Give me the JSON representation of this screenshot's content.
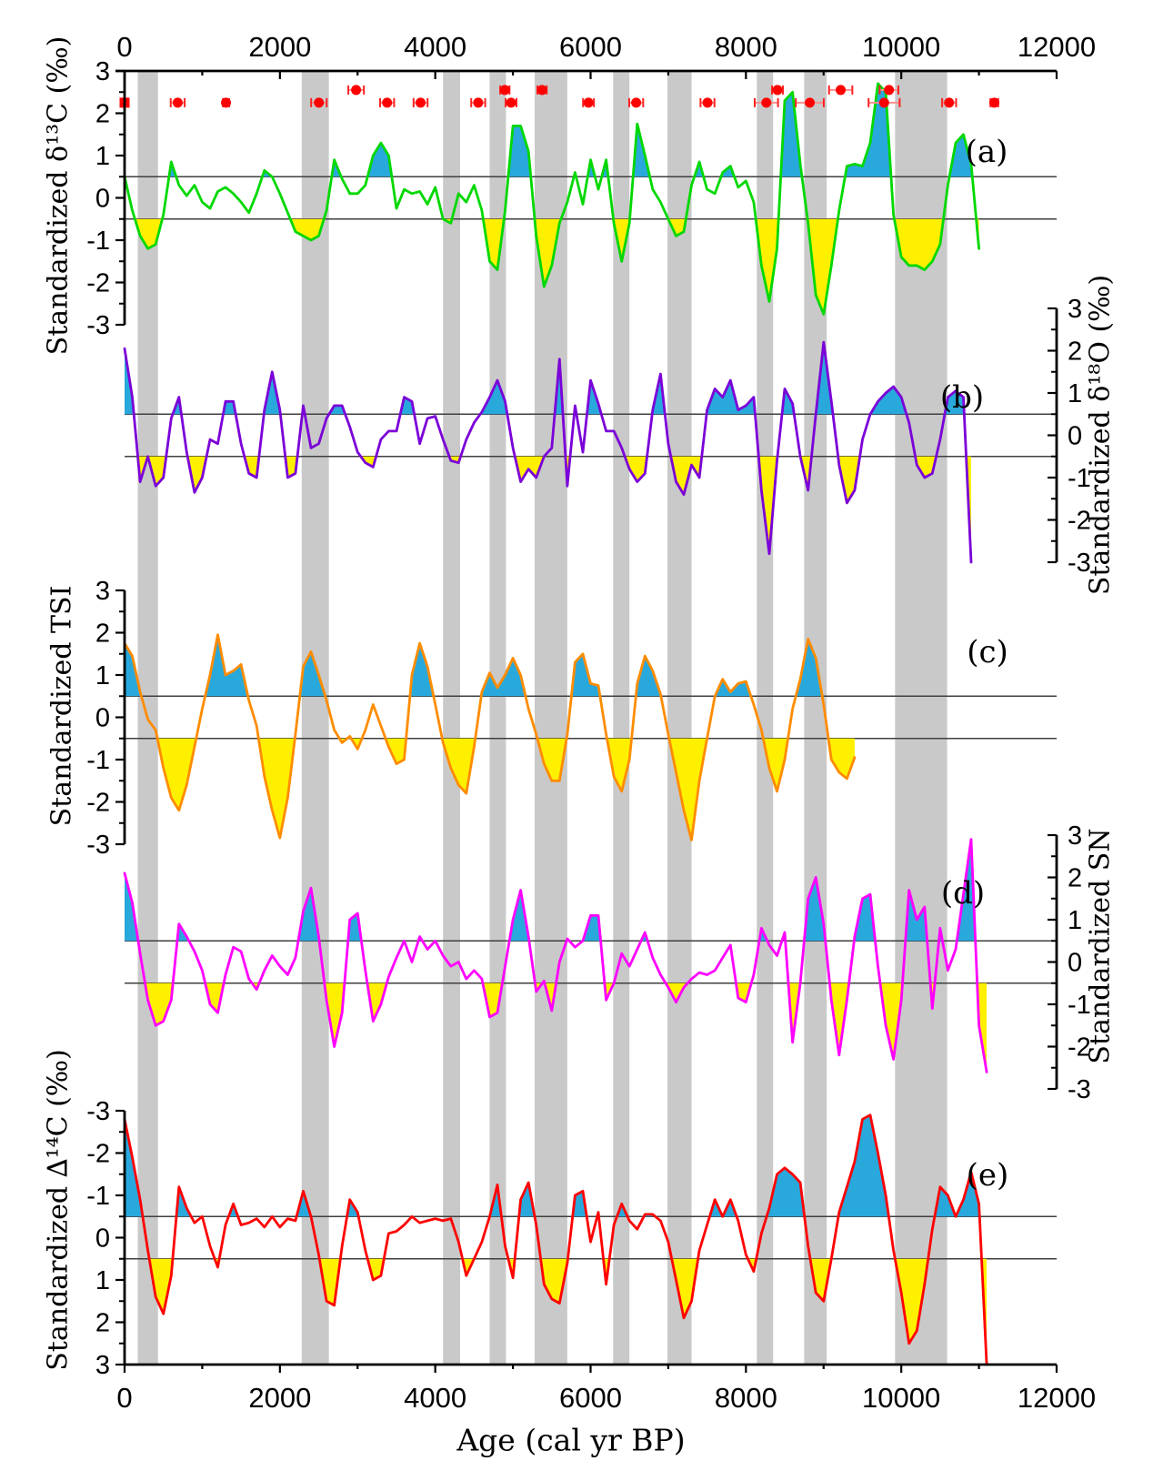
{
  "figure": {
    "background": "#ffffff"
  },
  "chart_data": {
    "type": "line",
    "x_axis": {
      "label": "Age (cal yr BP)",
      "min": 0,
      "max": 12000,
      "major_tick_step": 2000,
      "minor_tick_step": 1000,
      "tick_labels": [
        "0",
        "2000",
        "4000",
        "6000",
        "8000",
        "10000",
        "12000"
      ],
      "tick_values": [
        0,
        2000,
        4000,
        6000,
        8000,
        10000,
        12000
      ]
    },
    "highlight_bands": {
      "color": "#c9c9c9",
      "intervals_cal_yr_BP": [
        [
          170,
          430
        ],
        [
          2280,
          2630
        ],
        [
          4100,
          4320
        ],
        [
          4700,
          4910
        ],
        [
          5280,
          5700
        ],
        [
          6290,
          6500
        ],
        [
          6990,
          7300
        ],
        [
          8140,
          8350
        ],
        [
          8750,
          9040
        ],
        [
          9920,
          10590
        ]
      ]
    },
    "reference_lines": {
      "values": [
        0.5,
        -0.5
      ],
      "color": "#3f3f3f"
    },
    "fills": {
      "above_color": "#29a8dc",
      "below_color": "#fff000"
    },
    "radiocarbon_markers": {
      "marker_color": "#ff0000",
      "errorbar_color": "#ff8f8f",
      "cap_color": "#ff2020",
      "points": [
        {
          "age": 0,
          "y": 2.25,
          "err": 0,
          "shape": "square"
        },
        {
          "age": 684,
          "y": 2.25,
          "err": 90,
          "shape": "circle"
        },
        {
          "age": 1306,
          "y": 2.25,
          "err": 40,
          "shape": "circle"
        },
        {
          "age": 2502,
          "y": 2.25,
          "err": 100,
          "shape": "circle"
        },
        {
          "age": 2981,
          "y": 2.55,
          "err": 100,
          "shape": "circle"
        },
        {
          "age": 3380,
          "y": 2.25,
          "err": 90,
          "shape": "circle"
        },
        {
          "age": 3811,
          "y": 2.25,
          "err": 90,
          "shape": "circle"
        },
        {
          "age": 4553,
          "y": 2.25,
          "err": 90,
          "shape": "circle"
        },
        {
          "age": 4896,
          "y": 2.55,
          "err": 60,
          "shape": "circle"
        },
        {
          "age": 4976,
          "y": 2.25,
          "err": 70,
          "shape": "circle"
        },
        {
          "age": 5375,
          "y": 2.55,
          "err": 60,
          "shape": "circle"
        },
        {
          "age": 5973,
          "y": 2.25,
          "err": 70,
          "shape": "circle"
        },
        {
          "age": 6587,
          "y": 2.25,
          "err": 90,
          "shape": "circle"
        },
        {
          "age": 7505,
          "y": 2.25,
          "err": 90,
          "shape": "circle"
        },
        {
          "age": 8263,
          "y": 2.25,
          "err": 150,
          "shape": "circle"
        },
        {
          "age": 8406,
          "y": 2.55,
          "err": 70,
          "shape": "circle"
        },
        {
          "age": 8822,
          "y": 2.25,
          "err": 180,
          "shape": "circle"
        },
        {
          "age": 9220,
          "y": 2.55,
          "err": 150,
          "shape": "circle"
        },
        {
          "age": 9779,
          "y": 2.25,
          "err": 200,
          "shape": "circle"
        },
        {
          "age": 9842,
          "y": 2.55,
          "err": 120,
          "shape": "circle"
        },
        {
          "age": 10616,
          "y": 2.25,
          "err": 90,
          "shape": "circle"
        },
        {
          "age": 11198,
          "y": 2.25,
          "err": 50,
          "shape": "circle"
        }
      ]
    },
    "panels": [
      {
        "id": "a",
        "panel_label": "(a)",
        "y_axis_label": "Standardized δ¹³C (‰)",
        "axis_side": "left",
        "y_min": -3,
        "y_max": 3,
        "inverted": false,
        "y_ticks": [
          3,
          2,
          1,
          0,
          -1,
          -2,
          -3
        ],
        "line_color": "#00d800",
        "series_name": "delta13C",
        "x_start": 0,
        "x_step": 100,
        "values": [
          0.5,
          -0.3,
          -0.9,
          -1.2,
          -1.1,
          -0.4,
          0.85,
          0.3,
          0.05,
          0.3,
          -0.1,
          -0.25,
          0.15,
          0.25,
          0.1,
          -0.1,
          -0.35,
          0.1,
          0.65,
          0.5,
          0.1,
          -0.35,
          -0.8,
          -0.9,
          -1.0,
          -0.9,
          -0.3,
          0.9,
          0.45,
          0.1,
          0.1,
          0.3,
          1.0,
          1.3,
          1.0,
          -0.25,
          0.2,
          0.1,
          0.15,
          -0.15,
          0.25,
          -0.5,
          -0.6,
          0.1,
          -0.1,
          0.3,
          -0.3,
          -1.5,
          -1.7,
          -0.3,
          1.7,
          1.7,
          1.1,
          -0.9,
          -2.1,
          -1.6,
          -0.6,
          -0.1,
          0.6,
          -0.15,
          0.9,
          0.2,
          0.9,
          -0.6,
          -1.5,
          -0.6,
          1.75,
          1.0,
          0.2,
          -0.1,
          -0.5,
          -0.9,
          -0.8,
          0.3,
          0.85,
          0.2,
          0.1,
          0.6,
          0.75,
          0.25,
          0.4,
          -0.1,
          -1.6,
          -2.45,
          -1.2,
          2.3,
          2.5,
          0.8,
          -0.6,
          -2.3,
          -2.75,
          -1.6,
          -0.3,
          0.75,
          0.8,
          0.75,
          1.3,
          2.7,
          2.5,
          -0.4,
          -1.4,
          -1.6,
          -1.6,
          -1.7,
          -1.5,
          -1.1,
          0.3,
          1.3,
          1.5,
          0.8,
          -1.2
        ]
      },
      {
        "id": "b",
        "panel_label": "(b)",
        "y_axis_label": "Standardized δ¹⁸O (‰)",
        "axis_side": "right",
        "y_min": -3,
        "y_max": 3,
        "inverted": false,
        "y_ticks": [
          3,
          2,
          1,
          0,
          -1,
          -2,
          -3
        ],
        "line_color": "#7b00d8",
        "series_name": "delta18O",
        "x_start": 0,
        "x_step": 100,
        "values": [
          2.05,
          0.9,
          -1.1,
          -0.5,
          -1.2,
          -1.0,
          0.4,
          0.9,
          -0.4,
          -1.35,
          -1.0,
          -0.1,
          -0.2,
          0.8,
          0.8,
          -0.2,
          -0.9,
          -1.0,
          0.6,
          1.5,
          0.6,
          -1.0,
          -0.9,
          0.7,
          -0.3,
          -0.2,
          0.4,
          0.7,
          0.7,
          0.2,
          -0.4,
          -0.65,
          -0.75,
          -0.1,
          0.1,
          0.1,
          0.9,
          0.8,
          -0.2,
          0.4,
          0.45,
          -0.1,
          -0.6,
          -0.65,
          -0.1,
          0.3,
          0.55,
          0.9,
          1.3,
          0.8,
          -0.3,
          -1.1,
          -0.8,
          -1.0,
          -0.5,
          -0.3,
          1.8,
          -1.2,
          0.7,
          -0.4,
          1.3,
          0.75,
          0.1,
          0.1,
          -0.3,
          -0.8,
          -1.1,
          -0.9,
          0.6,
          1.45,
          -0.2,
          -1.1,
          -1.4,
          -0.7,
          -1.0,
          0.6,
          1.1,
          0.9,
          1.3,
          0.6,
          0.7,
          0.9,
          -1.3,
          -2.8,
          -0.6,
          1.1,
          0.75,
          -0.5,
          -1.3,
          0.5,
          2.2,
          0.8,
          -0.7,
          -1.6,
          -1.3,
          -0.1,
          0.5,
          0.8,
          1.0,
          1.15,
          0.9,
          0.3,
          -0.7,
          -1.0,
          -0.9,
          -0.1,
          0.9,
          1.05,
          0.9,
          -3.0
        ]
      },
      {
        "id": "c",
        "panel_label": "(c)",
        "y_axis_label": "Standardized TSI",
        "axis_side": "left",
        "y_min": -3,
        "y_max": 3,
        "inverted": false,
        "y_ticks": [
          3,
          2,
          1,
          0,
          -1,
          -2,
          -3
        ],
        "line_color": "#ff8c00",
        "series_name": "TSI",
        "x_start": 0,
        "x_step": 100,
        "values": [
          1.75,
          1.45,
          0.6,
          -0.05,
          -0.3,
          -1.2,
          -1.9,
          -2.2,
          -1.6,
          -0.7,
          0.2,
          1.0,
          1.95,
          1.0,
          1.1,
          1.25,
          0.4,
          -0.2,
          -1.4,
          -2.2,
          -2.85,
          -1.9,
          -0.4,
          1.2,
          1.55,
          1.0,
          0.4,
          -0.3,
          -0.6,
          -0.45,
          -0.75,
          -0.3,
          0.3,
          -0.2,
          -0.7,
          -1.1,
          -1.0,
          1.0,
          1.75,
          1.2,
          0.3,
          -0.6,
          -1.2,
          -1.6,
          -1.8,
          -0.7,
          0.6,
          1.05,
          0.7,
          1.0,
          1.4,
          1.0,
          0.2,
          -0.4,
          -1.1,
          -1.5,
          -1.5,
          -0.4,
          1.3,
          1.5,
          0.8,
          0.75,
          -0.4,
          -1.4,
          -1.75,
          -1.0,
          0.8,
          1.45,
          1.1,
          0.55,
          -0.4,
          -1.3,
          -2.2,
          -2.9,
          -1.5,
          -0.5,
          0.5,
          0.9,
          0.6,
          0.8,
          0.85,
          0.3,
          -0.3,
          -1.2,
          -1.75,
          -1.0,
          0.2,
          0.9,
          1.85,
          1.4,
          0.3,
          -1.0,
          -1.3,
          -1.45,
          -0.95
        ]
      },
      {
        "id": "d",
        "panel_label": "(d)",
        "y_axis_label": "Standardized SN",
        "axis_side": "right",
        "y_min": -3,
        "y_max": 3,
        "inverted": false,
        "y_ticks": [
          3,
          2,
          1,
          0,
          -1,
          -2,
          -3
        ],
        "line_color": "#ff00ff",
        "series_name": "SN",
        "x_start": 0,
        "x_step": 100,
        "values": [
          2.1,
          1.4,
          0.2,
          -0.9,
          -1.5,
          -1.4,
          -0.9,
          0.9,
          0.6,
          0.25,
          -0.2,
          -1.0,
          -1.2,
          -0.3,
          0.35,
          0.25,
          -0.4,
          -0.65,
          -0.2,
          0.15,
          -0.1,
          -0.3,
          0.1,
          1.2,
          1.75,
          0.6,
          -0.9,
          -2.0,
          -1.2,
          1.0,
          1.15,
          -0.2,
          -1.4,
          -1.0,
          -0.35,
          0.1,
          0.5,
          0.0,
          0.6,
          0.3,
          0.5,
          0.15,
          -0.1,
          0.0,
          -0.4,
          -0.2,
          -0.4,
          -1.3,
          -1.2,
          -0.1,
          1.0,
          1.7,
          0.6,
          -0.7,
          -0.45,
          -1.15,
          0.0,
          0.55,
          0.35,
          0.5,
          1.1,
          1.1,
          -0.9,
          -0.5,
          0.2,
          -0.1,
          0.3,
          0.7,
          0.1,
          -0.3,
          -0.6,
          -0.95,
          -0.6,
          -0.4,
          -0.25,
          -0.3,
          -0.2,
          0.1,
          0.4,
          -0.85,
          -0.95,
          -0.3,
          0.8,
          0.4,
          0.15,
          0.7,
          -1.9,
          -0.5,
          1.5,
          2.0,
          0.9,
          -0.9,
          -2.2,
          -0.9,
          0.6,
          1.5,
          1.6,
          -0.1,
          -1.5,
          -2.3,
          -0.9,
          1.7,
          1.0,
          1.3,
          -1.1,
          0.8,
          -0.2,
          0.3,
          1.6,
          2.9,
          -1.5,
          -2.6
        ]
      },
      {
        "id": "e",
        "panel_label": "(e)",
        "y_axis_label": "Standardized ∆¹⁴C (‰)",
        "axis_side": "left",
        "y_min": -3,
        "y_max": 3,
        "inverted": true,
        "y_ticks": [
          -3,
          -2,
          -1,
          0,
          1,
          2,
          3
        ],
        "line_color": "#ff0000",
        "series_name": "Delta14C",
        "x_start": 0,
        "x_step": 100,
        "values": [
          -2.8,
          -1.9,
          -0.9,
          0.3,
          1.4,
          1.8,
          0.9,
          -1.2,
          -0.7,
          -0.35,
          -0.5,
          0.2,
          0.7,
          -0.3,
          -0.8,
          -0.3,
          -0.35,
          -0.45,
          -0.25,
          -0.5,
          -0.25,
          -0.45,
          -0.4,
          -1.1,
          -0.5,
          0.4,
          1.5,
          1.6,
          0.2,
          -0.9,
          -0.6,
          0.3,
          1.0,
          0.9,
          -0.1,
          -0.15,
          -0.3,
          -0.5,
          -0.35,
          -0.4,
          -0.45,
          -0.4,
          -0.45,
          0.1,
          0.9,
          0.5,
          0.1,
          -0.5,
          -1.25,
          0.2,
          0.95,
          -0.9,
          -1.3,
          -0.3,
          1.1,
          1.45,
          1.55,
          0.6,
          -1.0,
          -1.1,
          0.1,
          -0.6,
          1.1,
          -0.3,
          -0.8,
          -0.4,
          -0.2,
          -0.55,
          -0.55,
          -0.4,
          0.1,
          1.0,
          1.9,
          1.5,
          0.3,
          -0.3,
          -0.9,
          -0.5,
          -0.9,
          -0.4,
          0.4,
          0.8,
          -0.1,
          -0.7,
          -1.5,
          -1.65,
          -1.5,
          -1.3,
          0.2,
          1.3,
          1.5,
          0.5,
          -0.6,
          -1.2,
          -1.8,
          -2.8,
          -2.9,
          -2.0,
          -1.0,
          0.3,
          1.3,
          2.5,
          2.2,
          1.1,
          -0.2,
          -1.2,
          -1.0,
          -0.5,
          -0.9,
          -1.55,
          -0.8,
          3.0
        ]
      }
    ]
  }
}
